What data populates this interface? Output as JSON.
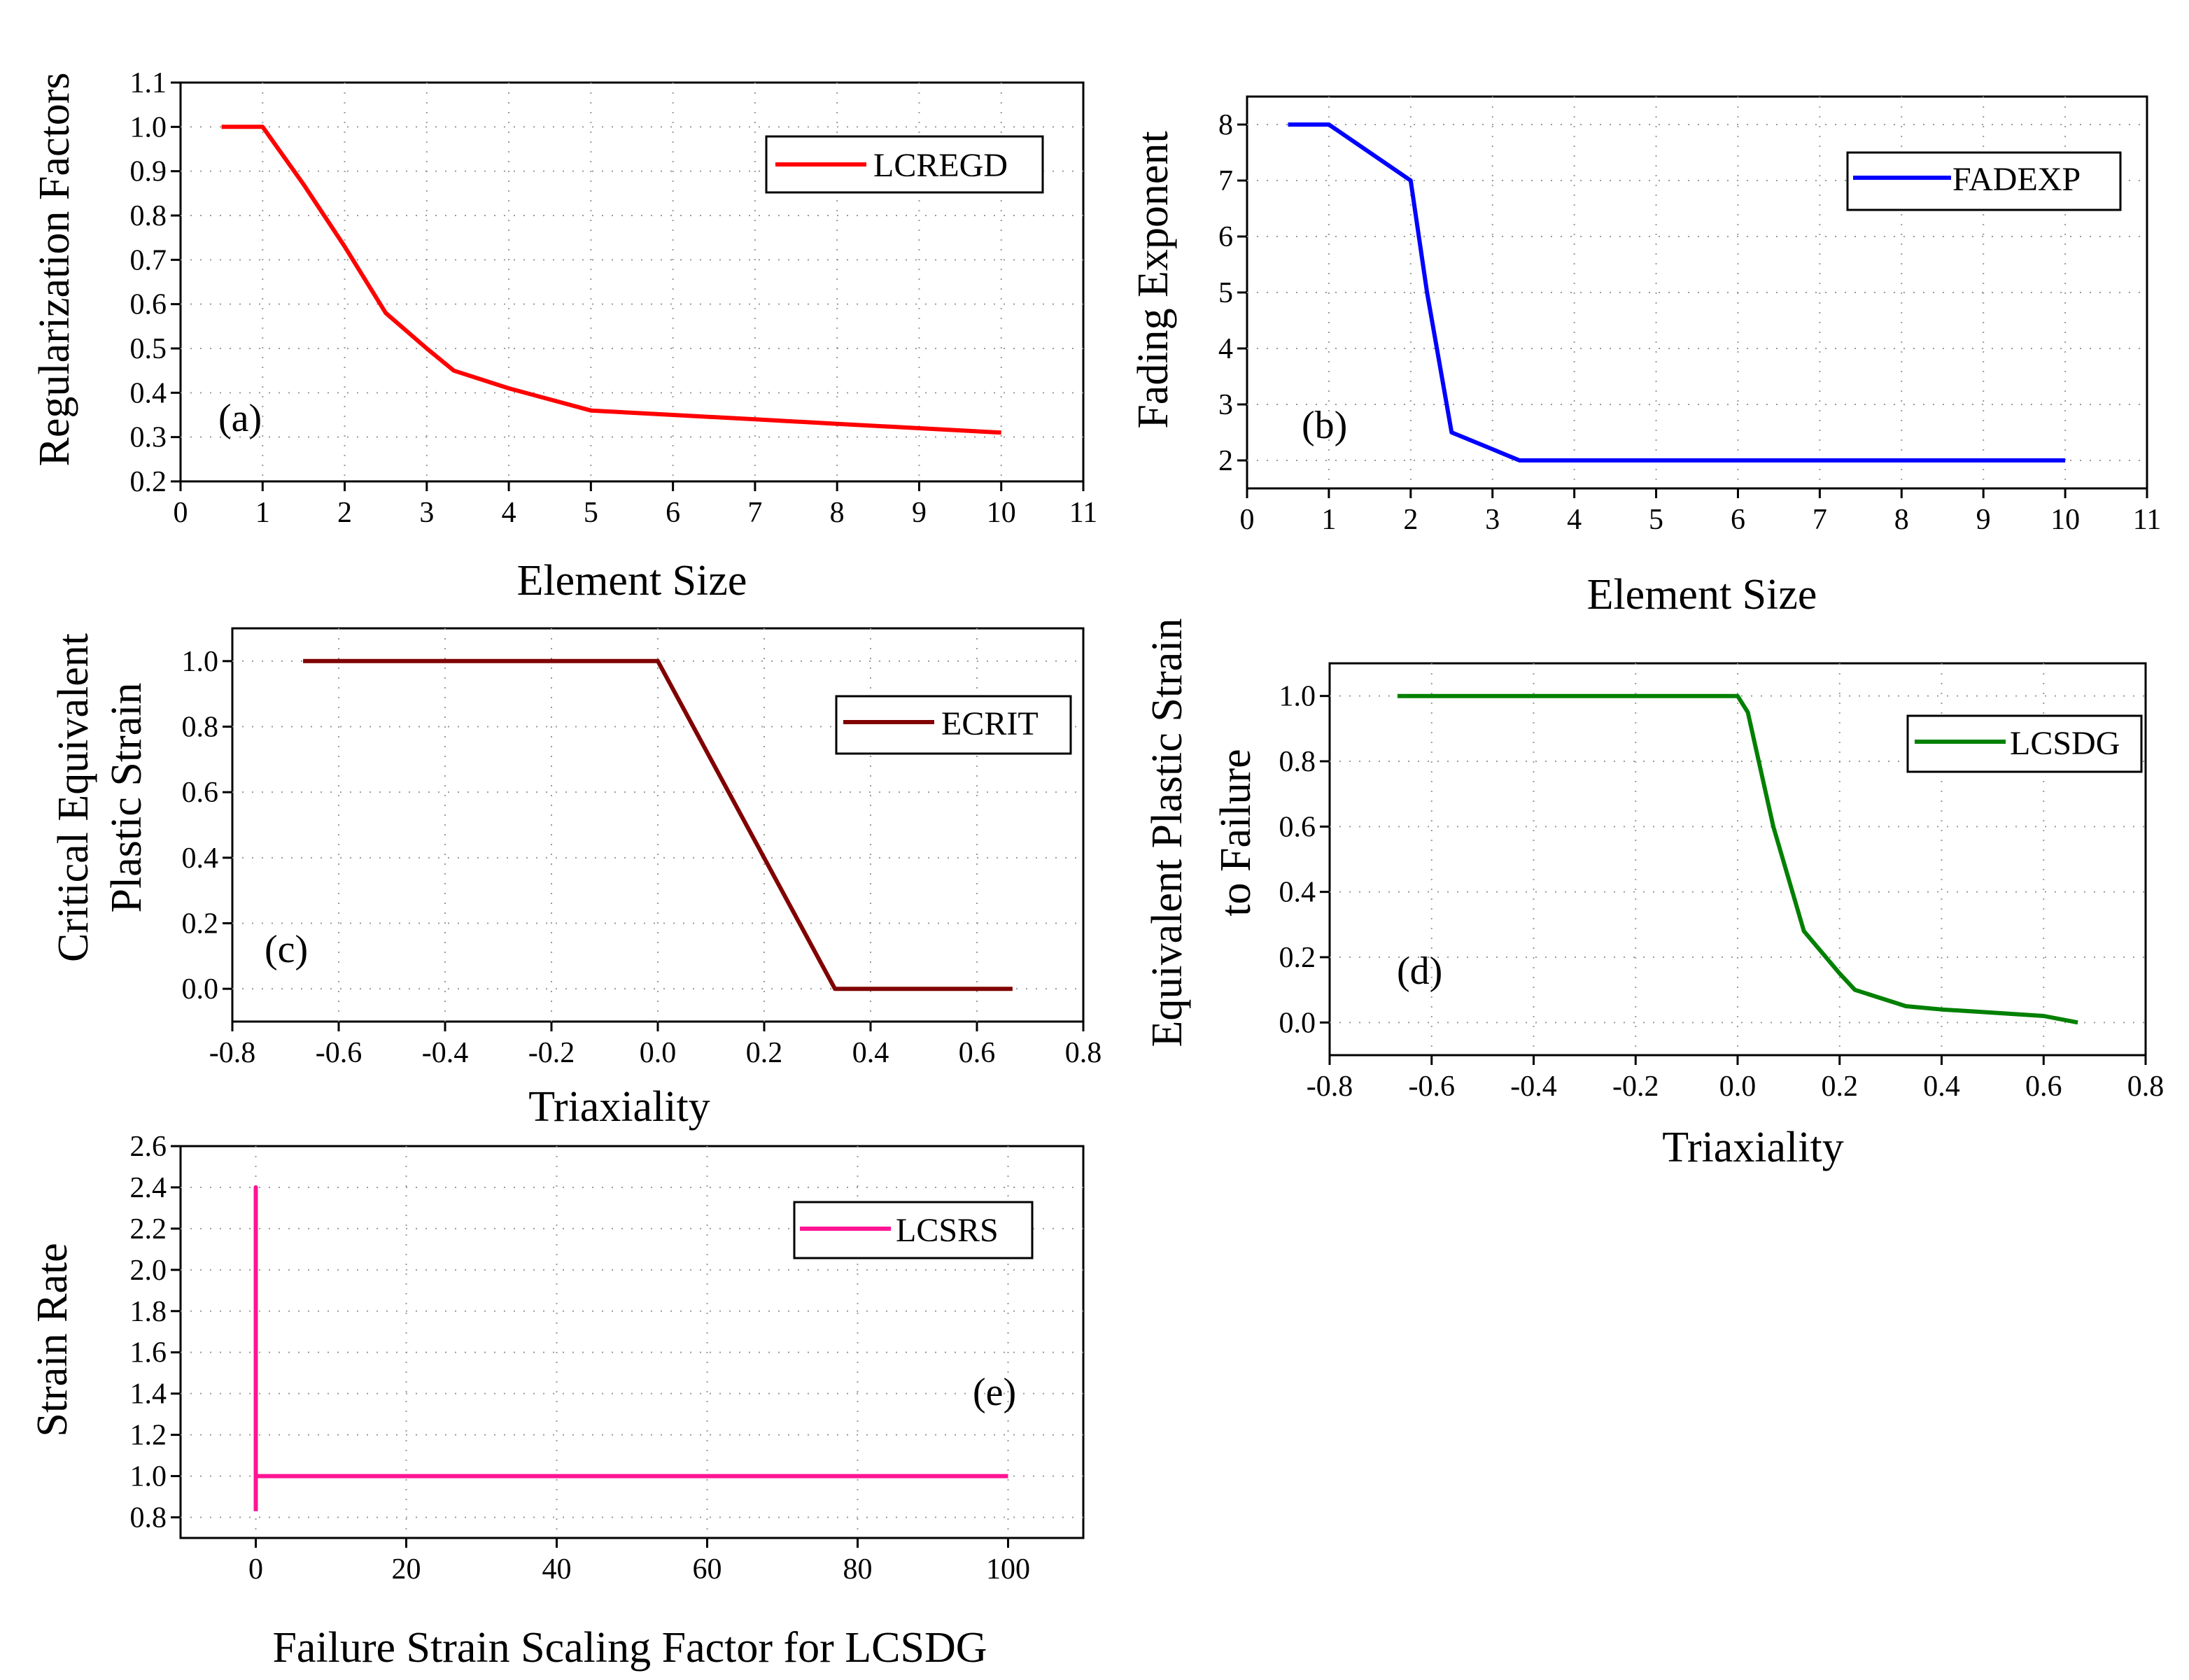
{
  "chart_data": [
    {
      "id": "a",
      "type": "line",
      "panel_label": "(a)",
      "xlabel": "Element Size",
      "ylabel": "Regularization Factors",
      "xlim": [
        0,
        11
      ],
      "ylim": [
        0.2,
        1.1
      ],
      "xticks": [
        "0",
        "1",
        "2",
        "3",
        "4",
        "5",
        "6",
        "7",
        "8",
        "9",
        "10",
        "11"
      ],
      "yticks": [
        "0.2",
        "0.3",
        "0.4",
        "0.5",
        "0.6",
        "0.7",
        "0.8",
        "0.9",
        "1.0",
        "1.1"
      ],
      "grid": true,
      "legend_position": "top-right",
      "series": [
        {
          "name": "LCREGD",
          "color": "#ff0000",
          "x": [
            0.5,
            1.0,
            1.5,
            2.0,
            2.5,
            3.0,
            3.33,
            4.0,
            5.0,
            6.0,
            7.0,
            8.0,
            9.0,
            10.0
          ],
          "y": [
            1.0,
            1.0,
            0.87,
            0.73,
            0.58,
            0.5,
            0.45,
            0.41,
            0.36,
            0.35,
            0.34,
            0.33,
            0.32,
            0.31
          ]
        }
      ]
    },
    {
      "id": "b",
      "type": "line",
      "panel_label": "(b)",
      "xlabel": "Element Size",
      "ylabel": "Fading Exponent",
      "xlim": [
        0,
        11
      ],
      "ylim": [
        1.5,
        8.5
      ],
      "xticks": [
        "0",
        "1",
        "2",
        "3",
        "4",
        "5",
        "6",
        "7",
        "8",
        "9",
        "10",
        "11"
      ],
      "yticks": [
        "2",
        "3",
        "4",
        "5",
        "6",
        "7",
        "8"
      ],
      "grid": true,
      "legend_position": "top-right",
      "series": [
        {
          "name": "FADEXP",
          "color": "#0000ff",
          "x": [
            0.5,
            1.0,
            2.0,
            2.2,
            2.5,
            3.0,
            3.33,
            10.0
          ],
          "y": [
            8,
            8,
            7,
            5.0,
            2.5,
            2.2,
            2.0,
            2.0
          ]
        }
      ]
    },
    {
      "id": "c",
      "type": "line",
      "panel_label": "(c)",
      "xlabel": "Triaxiality",
      "ylabel": "Critical Equivalent Plastic Strain",
      "ylabel_lines": [
        "Critical Equivalent",
        "Plastic Strain"
      ],
      "xlim": [
        -0.8,
        0.8
      ],
      "ylim": [
        -0.1,
        1.1
      ],
      "xticks": [
        "-0.8",
        "-0.6",
        "-0.4",
        "-0.2",
        "0.0",
        "0.2",
        "0.4",
        "0.6",
        "0.8"
      ],
      "yticks": [
        "0.0",
        "0.2",
        "0.4",
        "0.6",
        "0.8",
        "1.0"
      ],
      "grid": true,
      "legend_position": "top-right",
      "series": [
        {
          "name": "ECRIT",
          "color": "#800000",
          "x": [
            -0.667,
            0.0,
            0.333,
            0.667
          ],
          "y": [
            1.0,
            1.0,
            0.0,
            0.0
          ]
        }
      ]
    },
    {
      "id": "d",
      "type": "line",
      "panel_label": "(d)",
      "xlabel": "Triaxiality",
      "ylabel": "Equivalent Plastic Strain to Failure",
      "ylabel_lines": [
        "Equivalent Plastic Strain",
        "to Failure"
      ],
      "xlim": [
        -0.8,
        0.8
      ],
      "ylim": [
        -0.1,
        1.1
      ],
      "xticks": [
        "-0.8",
        "-0.6",
        "-0.4",
        "-0.2",
        "0.0",
        "0.2",
        "0.4",
        "0.6",
        "0.8"
      ],
      "yticks": [
        "0.0",
        "0.2",
        "0.4",
        "0.6",
        "0.8",
        "1.0"
      ],
      "grid": true,
      "legend_position": "top-right",
      "series": [
        {
          "name": "LCSDG",
          "color": "#008000",
          "x": [
            -0.667,
            0.0,
            0.02,
            0.07,
            0.13,
            0.2,
            0.23,
            0.33,
            0.4,
            0.5,
            0.6,
            0.667
          ],
          "y": [
            1.0,
            1.0,
            0.95,
            0.6,
            0.28,
            0.15,
            0.1,
            0.05,
            0.04,
            0.03,
            0.02,
            0.0
          ]
        }
      ]
    },
    {
      "id": "e",
      "type": "line",
      "panel_label": "(e)",
      "xlabel": "Failure Strain Scaling Factor for LCSDG",
      "ylabel": "Strain Rate",
      "xlim": [
        -10,
        110
      ],
      "ylim": [
        0.7,
        2.6
      ],
      "xticks": [
        "0",
        "20",
        "40",
        "60",
        "80",
        "100"
      ],
      "yticks": [
        "0.8",
        "1.0",
        "1.2",
        "1.4",
        "1.6",
        "1.8",
        "2.0",
        "2.2",
        "2.4",
        "2.6"
      ],
      "grid": true,
      "legend_position": "top-right",
      "series": [
        {
          "name": "LCSRS",
          "color": "#ff1493",
          "x": [
            0,
            0,
            0,
            100
          ],
          "y": [
            0.83,
            2.4,
            1.0,
            1.0
          ]
        }
      ]
    }
  ]
}
